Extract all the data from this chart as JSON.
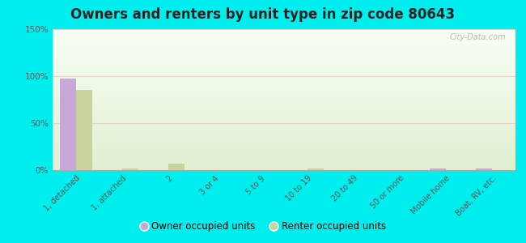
{
  "title": "Owners and renters by unit type in zip code 80643",
  "categories": [
    "1, detached",
    "1, attached",
    "2",
    "3 or 4",
    "5 to 9",
    "10 to 19",
    "20 to 49",
    "50 or more",
    "Mobile home",
    "Boat, RV, etc."
  ],
  "owner_values": [
    97,
    0,
    0,
    0,
    0,
    0,
    0,
    0,
    1.5,
    1.5
  ],
  "renter_values": [
    85,
    1.5,
    7,
    0,
    0,
    1.5,
    0,
    0,
    0,
    0
  ],
  "owner_color": "#c8a8d8",
  "renter_color": "#c8d4a0",
  "background_outer": "#00eeee",
  "background_chart_bottom": "#e8f0d0",
  "background_chart_top": "#f8fcf4",
  "ylim": [
    0,
    150
  ],
  "yticks": [
    0,
    50,
    100,
    150
  ],
  "ytick_labels": [
    "0%",
    "50%",
    "100%",
    "150%"
  ],
  "watermark": "City-Data.com",
  "legend_owner": "Owner occupied units",
  "legend_renter": "Renter occupied units",
  "bar_width": 0.35,
  "title_fontsize": 12,
  "title_color": "#222222"
}
